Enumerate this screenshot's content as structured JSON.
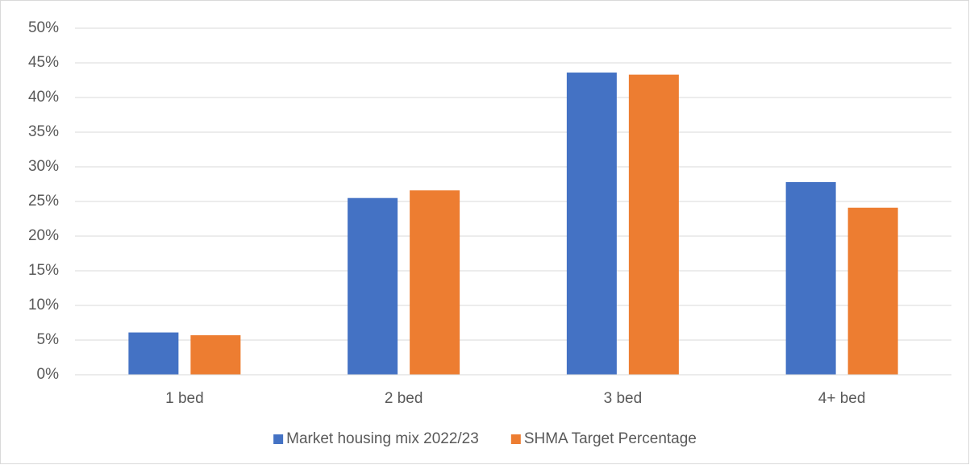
{
  "chart_data": {
    "type": "bar",
    "categories": [
      "1 bed",
      "2 bed",
      "3 bed",
      "4+ bed"
    ],
    "series": [
      {
        "name": "Market housing mix 2022/23",
        "color": "#4472c4",
        "values": [
          6.1,
          25.5,
          43.6,
          27.8
        ]
      },
      {
        "name": "SHMA Target Percentage",
        "color": "#ed7d31",
        "values": [
          5.7,
          26.6,
          43.3,
          24.1
        ]
      }
    ],
    "ylim": [
      0,
      50
    ],
    "yticks": [
      {
        "value": 0,
        "label": "0%"
      },
      {
        "value": 5,
        "label": "5%"
      },
      {
        "value": 10,
        "label": "10%"
      },
      {
        "value": 15,
        "label": "15%"
      },
      {
        "value": 20,
        "label": "20%"
      },
      {
        "value": 25,
        "label": "25%"
      },
      {
        "value": 30,
        "label": "30%"
      },
      {
        "value": 35,
        "label": "35%"
      },
      {
        "value": 40,
        "label": "40%"
      },
      {
        "value": 45,
        "label": "45%"
      },
      {
        "value": 50,
        "label": "50%"
      }
    ],
    "grid": true,
    "legend": "bottom"
  }
}
